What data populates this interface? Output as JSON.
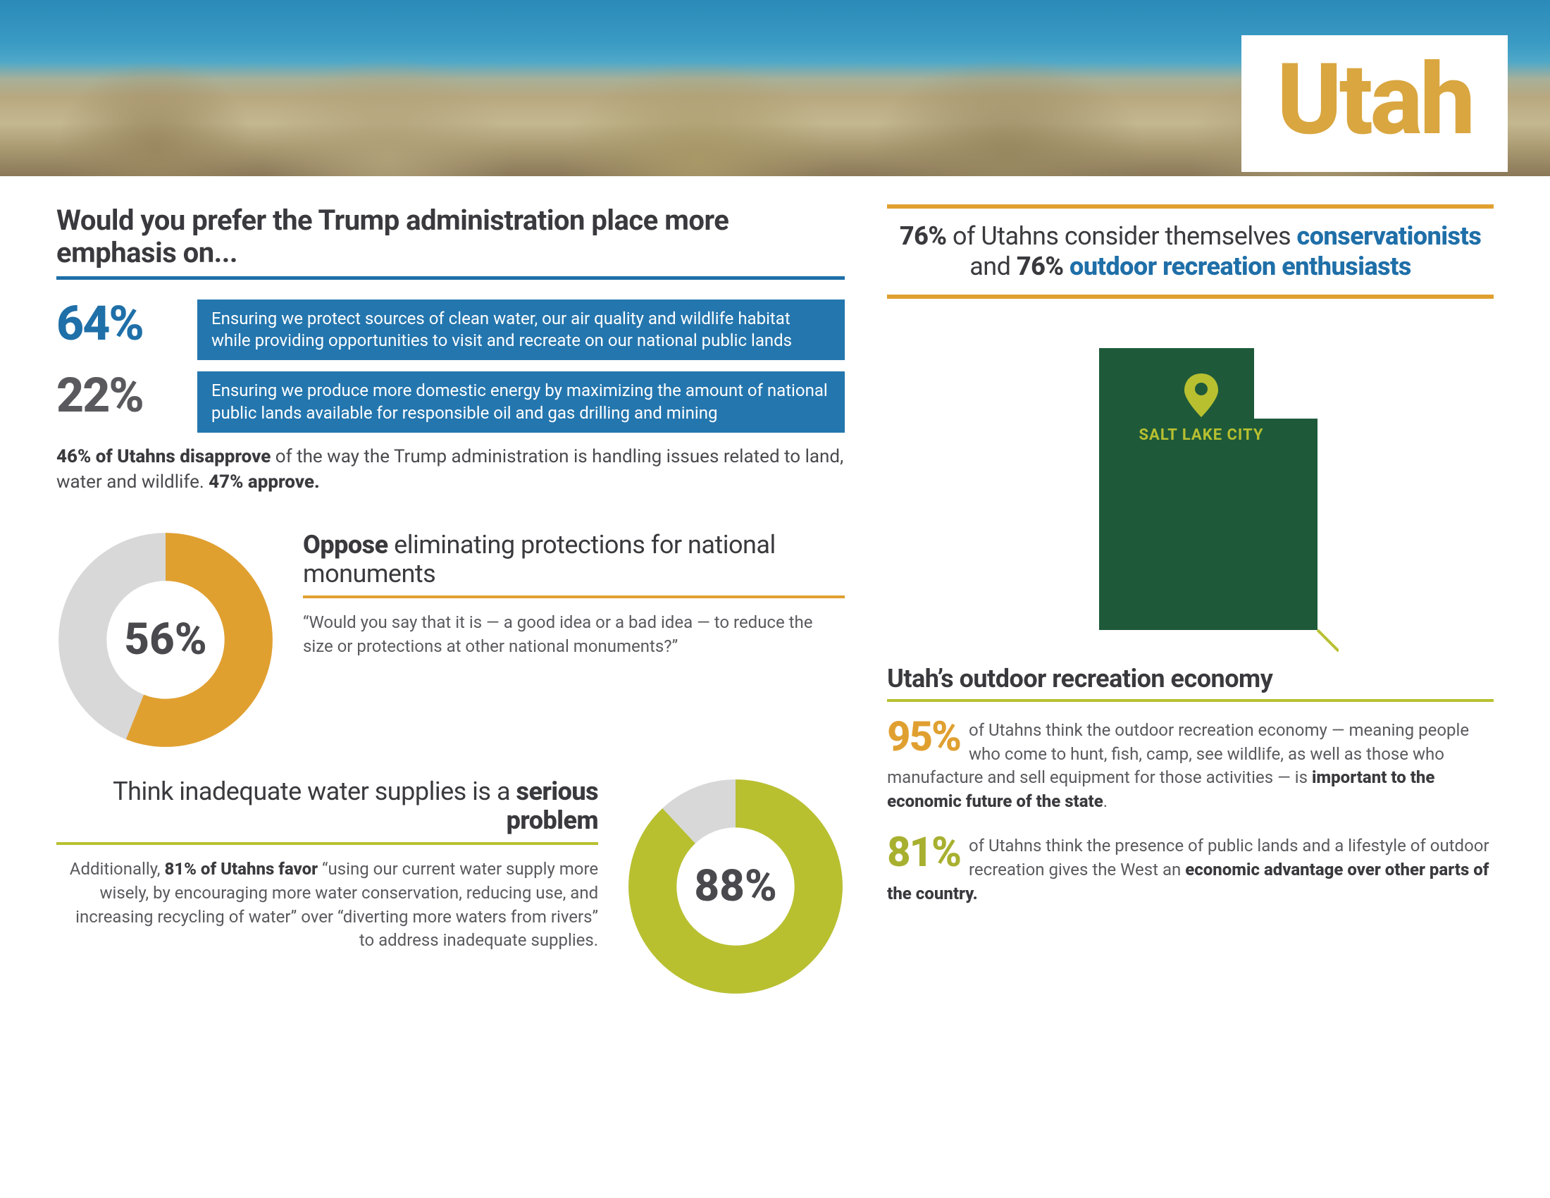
{
  "title": "Utah",
  "colors": {
    "gold": "#d9a640",
    "blue": "#1f6fa8",
    "blue_box": "#2476ae",
    "dark_text": "#3a3a3e",
    "mid_text": "#5a5a5e",
    "orange": "#e0a030",
    "olive": "#b8c030",
    "donut_bg": "#d8d8d8",
    "forest": "#1e5a3a",
    "map_label": "#b8c030"
  },
  "left": {
    "question": "Would you prefer the Trump administration place more emphasis on...",
    "stats": [
      {
        "pct": "64%",
        "color": "#2476ae",
        "text": "Ensuring we protect sources of clean water, our air quality and wildlife habitat while providing opportunities to visit and recreate on our national public lands"
      },
      {
        "pct": "22%",
        "pct_color": "#5a5a5e",
        "color": "#2476ae",
        "text": "Ensuring we produce more domestic energy by maximizing the amount of national public lands available for responsible oil and gas drilling and mining"
      }
    ],
    "disapprove_bold": "46% of Utahns disapprove",
    "disapprove_rest": " of the way the Trump administration is handling issues related to land, water and wildlife. ",
    "disapprove_tail": "47% approve.",
    "donut1": {
      "value": 56,
      "label": "56%",
      "color": "#e0a030",
      "bg": "#d8d8d8",
      "title_bold": "Oppose",
      "title_rest": " eliminating protections for national monuments",
      "quote": "“Would you say that it is — a good idea or a bad idea — to reduce the size or protections at other national monuments?”"
    },
    "donut2": {
      "value": 88,
      "label": "88%",
      "color": "#b8c030",
      "bg": "#d8d8d8",
      "title_pre": "Think inadequate water supplies is a ",
      "title_bold": "serious problem",
      "para_pre": "Additionally, ",
      "para_bold": "81% of Utahns favor",
      "para_rest": " “using our current water supply more wisely, by encouraging more water conservation, reducing use, and increasing recycling of water” over “diverting more waters from rivers” to address inadequate supplies."
    }
  },
  "right": {
    "head_pct1": "76%",
    "head_mid1": " of Utahns consider themselves ",
    "head_hl1": "conservationists",
    "head_mid2": " and ",
    "head_pct2": "76%",
    "head_hl2": " outdoor recreation enthusiasts",
    "map_label": "SALT LAKE CITY",
    "econ_title": "Utah’s outdoor recreation economy",
    "econ1": {
      "pct": "95%",
      "pct_color": "#e0a030",
      "text_pre": "of Utahns think the outdoor recreation economy — meaning people who come to hunt, fish, camp, see wildlife, as well as those who manufacture and sell equipment for those activities — is ",
      "text_bold": "important to the economic future of the state",
      "text_post": "."
    },
    "econ2": {
      "pct": "81%",
      "pct_color": "#a8b030",
      "text_pre": "of Utahns think the presence of public lands and a lifestyle of outdoor recreation gives the West an ",
      "text_bold": "economic advantage over other parts of the country.",
      "text_post": ""
    }
  }
}
